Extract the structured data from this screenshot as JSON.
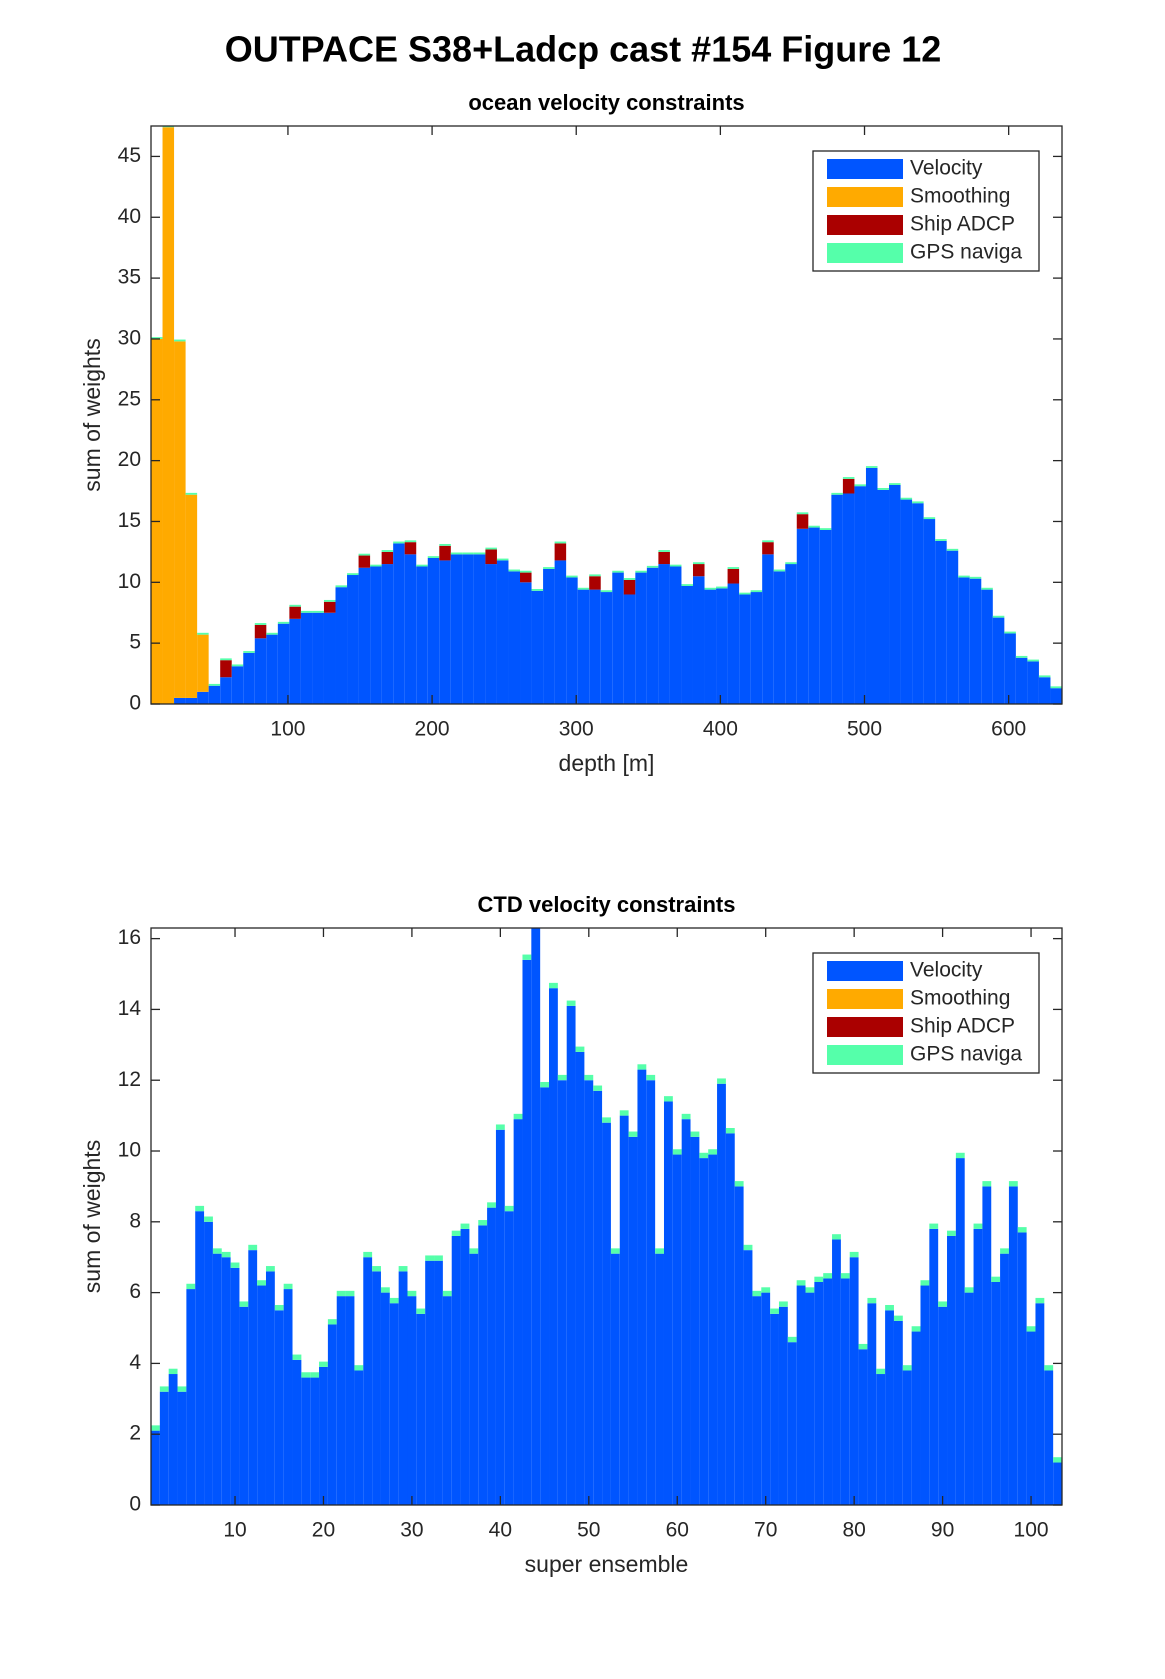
{
  "title": "OUTPACE S38+Ladcp cast #154  Figure 12",
  "chart_data": [
    {
      "type": "bar",
      "title": "ocean velocity constraints",
      "xlabel": "depth [m]",
      "ylabel": "sum of weights",
      "x": [
        9,
        17,
        25,
        33,
        41,
        49,
        57,
        65,
        73,
        81,
        89,
        97,
        105,
        113,
        121,
        129,
        137,
        145,
        153,
        161,
        169,
        177,
        185,
        193,
        201,
        209,
        217,
        225,
        233,
        241,
        249,
        257,
        265,
        273,
        281,
        289,
        297,
        305,
        313,
        321,
        329,
        337,
        345,
        353,
        361,
        369,
        377,
        385,
        393,
        401,
        409,
        417,
        425,
        433,
        441,
        449,
        457,
        465,
        473,
        481,
        489,
        497,
        505,
        513,
        521,
        529,
        537,
        545,
        553,
        561,
        569,
        577,
        585,
        593,
        601,
        609,
        617,
        625,
        633
      ],
      "series": [
        {
          "name": "Velocity",
          "color": "#0055ff",
          "values": [
            0,
            0,
            0.5,
            0.5,
            1.0,
            1.5,
            2.2,
            3.1,
            4.2,
            5.4,
            5.7,
            6.6,
            7.0,
            7.5,
            7.5,
            7.5,
            9.6,
            10.6,
            11.2,
            11.3,
            11.5,
            13.2,
            12.3,
            11.3,
            12.0,
            11.8,
            12.3,
            12.3,
            12.3,
            11.5,
            11.8,
            10.9,
            10.0,
            9.3,
            11.1,
            11.8,
            10.4,
            9.4,
            9.4,
            9.2,
            10.8,
            9.0,
            10.8,
            11.2,
            11.5,
            11.3,
            9.7,
            10.5,
            9.4,
            9.5,
            9.9,
            9.0,
            9.2,
            12.3,
            10.9,
            11.5,
            14.4,
            14.5,
            14.3,
            17.2,
            17.3,
            17.9,
            19.4,
            17.6,
            18.0,
            16.8,
            16.5,
            15.2,
            13.4,
            12.6,
            10.4,
            10.3,
            9.4,
            7.1,
            5.8,
            3.8,
            3.5,
            2.2,
            1.3
          ]
        },
        {
          "name": "Smoothing",
          "color": "#ffaa00",
          "values": [
            30,
            47.4,
            29.3,
            16.7,
            4.7,
            0,
            0,
            0,
            0,
            0,
            0,
            0,
            0,
            0,
            0,
            0,
            0,
            0,
            0,
            0,
            0,
            0,
            0,
            0,
            0,
            0,
            0,
            0,
            0,
            0,
            0,
            0,
            0,
            0,
            0,
            0,
            0,
            0,
            0,
            0,
            0,
            0,
            0,
            0,
            0,
            0,
            0,
            0,
            0,
            0,
            0,
            0,
            0,
            0,
            0,
            0,
            0,
            0,
            0,
            0,
            0,
            0,
            0,
            0,
            0,
            0,
            0,
            0,
            0,
            0,
            0,
            0,
            0,
            0,
            0,
            0,
            0,
            0,
            0
          ]
        },
        {
          "name": "Ship ADCP",
          "color": "#aa0000",
          "values": [
            0,
            0,
            0,
            0,
            0,
            0,
            1.4,
            0,
            0,
            1.1,
            0,
            0,
            1.0,
            0,
            0,
            0.9,
            0,
            0,
            1.0,
            0,
            1.0,
            0,
            1.0,
            0,
            0,
            1.2,
            0,
            0,
            0,
            1.2,
            0,
            0,
            0.8,
            0,
            0,
            1.4,
            0,
            0,
            1.1,
            0,
            0,
            1.2,
            0,
            0,
            1.0,
            0,
            0,
            1.0,
            0,
            0,
            1.2,
            0,
            0,
            1.0,
            0,
            0,
            1.2,
            0,
            0,
            0,
            1.2,
            0,
            0,
            0,
            0,
            0,
            0,
            0,
            0,
            0,
            0,
            0,
            0,
            0,
            0,
            0,
            0,
            0,
            0
          ]
        },
        {
          "name": "GPS naviga",
          "color": "#55ffaa",
          "values": [
            0.15,
            0.15,
            0.15,
            0.15,
            0.15,
            0.15,
            0.15,
            0.15,
            0.15,
            0.15,
            0.15,
            0.15,
            0.15,
            0.15,
            0.15,
            0.15,
            0.15,
            0.15,
            0.15,
            0.15,
            0.15,
            0.15,
            0.15,
            0.15,
            0.15,
            0.15,
            0.15,
            0.15,
            0.15,
            0.15,
            0.15,
            0.15,
            0.15,
            0.15,
            0.15,
            0.15,
            0.15,
            0.15,
            0.15,
            0.15,
            0.15,
            0.15,
            0.15,
            0.15,
            0.15,
            0.15,
            0.15,
            0.15,
            0.15,
            0.15,
            0.15,
            0.15,
            0.15,
            0.15,
            0.15,
            0.15,
            0.15,
            0.15,
            0.15,
            0.15,
            0.15,
            0.15,
            0.15,
            0.15,
            0.15,
            0.15,
            0.15,
            0.15,
            0.15,
            0.15,
            0.15,
            0.15,
            0.15,
            0.15,
            0.15,
            0.15,
            0.15,
            0.15,
            0.15
          ]
        }
      ],
      "xlim": [
        5,
        637
      ],
      "ylim": [
        0,
        47.5
      ],
      "xticks": [
        100,
        200,
        300,
        400,
        500,
        600
      ],
      "yticks": [
        0,
        5,
        10,
        15,
        20,
        25,
        30,
        35,
        40,
        45
      ],
      "legend": "upper right"
    },
    {
      "type": "bar",
      "title": "CTD velocity constraints",
      "xlabel": "super ensemble",
      "ylabel": "sum of weights",
      "x": [
        1,
        2,
        3,
        4,
        5,
        6,
        7,
        8,
        9,
        10,
        11,
        12,
        13,
        14,
        15,
        16,
        17,
        18,
        19,
        20,
        21,
        22,
        23,
        24,
        25,
        26,
        27,
        28,
        29,
        30,
        31,
        32,
        33,
        34,
        35,
        36,
        37,
        38,
        39,
        40,
        41,
        42,
        43,
        44,
        45,
        46,
        47,
        48,
        49,
        50,
        51,
        52,
        53,
        54,
        55,
        56,
        57,
        58,
        59,
        60,
        61,
        62,
        63,
        64,
        65,
        66,
        67,
        68,
        69,
        70,
        71,
        72,
        73,
        74,
        75,
        76,
        77,
        78,
        79,
        80,
        81,
        82,
        83,
        84,
        85,
        86,
        87,
        88,
        89,
        90,
        91,
        92,
        93,
        94,
        95,
        96,
        97,
        98,
        99,
        100,
        101,
        102,
        103
      ],
      "series": [
        {
          "name": "Velocity",
          "color": "#0055ff",
          "values": [
            2.1,
            3.2,
            3.7,
            3.2,
            6.1,
            8.3,
            8.0,
            7.1,
            7.0,
            6.7,
            5.6,
            7.2,
            6.2,
            6.6,
            5.5,
            6.1,
            4.1,
            3.6,
            3.6,
            3.9,
            5.1,
            5.9,
            5.9,
            3.8,
            7.0,
            6.6,
            6.0,
            5.7,
            6.6,
            5.9,
            5.4,
            6.9,
            6.9,
            5.9,
            7.6,
            7.8,
            7.1,
            7.9,
            8.4,
            10.6,
            8.3,
            10.9,
            15.4,
            16.3,
            11.8,
            14.6,
            12.0,
            14.1,
            12.8,
            12.0,
            11.7,
            10.8,
            7.1,
            11.0,
            10.4,
            12.3,
            12.0,
            7.1,
            11.4,
            9.9,
            10.9,
            10.4,
            9.8,
            9.9,
            11.9,
            10.5,
            9.0,
            7.2,
            5.9,
            6.0,
            5.4,
            5.6,
            4.6,
            6.2,
            6.0,
            6.3,
            6.4,
            7.5,
            6.4,
            7.0,
            4.4,
            5.7,
            3.7,
            5.5,
            5.2,
            3.8,
            4.9,
            6.2,
            7.8,
            5.6,
            7.6,
            9.8,
            6.0,
            7.8,
            9.0,
            6.3,
            7.1,
            9.0,
            7.7,
            4.9,
            5.7,
            3.8,
            1.2
          ]
        },
        {
          "name": "Smoothing",
          "color": "#ffaa00",
          "values": [
            0,
            0,
            0,
            0,
            0,
            0,
            0,
            0,
            0,
            0,
            0,
            0,
            0,
            0,
            0,
            0,
            0,
            0,
            0,
            0,
            0,
            0,
            0,
            0,
            0,
            0,
            0,
            0,
            0,
            0,
            0,
            0,
            0,
            0,
            0,
            0,
            0,
            0,
            0,
            0,
            0,
            0,
            0,
            0,
            0,
            0,
            0,
            0,
            0,
            0,
            0,
            0,
            0,
            0,
            0,
            0,
            0,
            0,
            0,
            0,
            0,
            0,
            0,
            0,
            0,
            0,
            0,
            0,
            0,
            0,
            0,
            0,
            0,
            0,
            0,
            0,
            0,
            0,
            0,
            0,
            0,
            0,
            0,
            0,
            0,
            0,
            0,
            0,
            0,
            0,
            0,
            0,
            0,
            0,
            0,
            0,
            0,
            0,
            0,
            0,
            0,
            0,
            0
          ]
        },
        {
          "name": "Ship ADCP",
          "color": "#aa0000",
          "values": [
            0,
            0,
            0,
            0,
            0,
            0,
            0,
            0,
            0,
            0,
            0,
            0,
            0,
            0,
            0,
            0,
            0,
            0,
            0,
            0,
            0,
            0,
            0,
            0,
            0,
            0,
            0,
            0,
            0,
            0,
            0,
            0,
            0,
            0,
            0,
            0,
            0,
            0,
            0,
            0,
            0,
            0,
            0,
            0,
            0,
            0,
            0,
            0,
            0,
            0,
            0,
            0,
            0,
            0,
            0,
            0,
            0,
            0,
            0,
            0,
            0,
            0,
            0,
            0,
            0,
            0,
            0,
            0,
            0,
            0,
            0,
            0,
            0,
            0,
            0,
            0,
            0,
            0,
            0,
            0,
            0,
            0,
            0,
            0,
            0,
            0,
            0,
            0,
            0,
            0,
            0,
            0,
            0,
            0,
            0,
            0,
            0,
            0,
            0,
            0,
            0,
            0,
            0
          ]
        },
        {
          "name": "GPS naviga",
          "color": "#55ffaa",
          "values": [
            0.15,
            0.15,
            0.15,
            0.15,
            0.15,
            0.15,
            0.15,
            0.15,
            0.15,
            0.15,
            0.15,
            0.15,
            0.15,
            0.15,
            0.15,
            0.15,
            0.15,
            0.15,
            0.15,
            0.15,
            0.15,
            0.15,
            0.15,
            0.15,
            0.15,
            0.15,
            0.15,
            0.15,
            0.15,
            0.15,
            0.15,
            0.15,
            0.15,
            0.15,
            0.15,
            0.15,
            0.15,
            0.15,
            0.15,
            0.15,
            0.15,
            0.15,
            0.15,
            0.15,
            0.15,
            0.15,
            0.15,
            0.15,
            0.15,
            0.15,
            0.15,
            0.15,
            0.15,
            0.15,
            0.15,
            0.15,
            0.15,
            0.15,
            0.15,
            0.15,
            0.15,
            0.15,
            0.15,
            0.15,
            0.15,
            0.15,
            0.15,
            0.15,
            0.15,
            0.15,
            0.15,
            0.15,
            0.15,
            0.15,
            0.15,
            0.15,
            0.15,
            0.15,
            0.15,
            0.15,
            0.15,
            0.15,
            0.15,
            0.15,
            0.15,
            0.15,
            0.15,
            0.15,
            0.15,
            0.15,
            0.15,
            0.15,
            0.15,
            0.15,
            0.15,
            0.15,
            0.15,
            0.15,
            0.15,
            0.15,
            0.15,
            0.15,
            0.15
          ]
        }
      ],
      "xlim": [
        0.5,
        103.5
      ],
      "ylim": [
        0,
        16.3
      ],
      "xticks": [
        10,
        20,
        30,
        40,
        50,
        60,
        70,
        80,
        90,
        100
      ],
      "yticks": [
        0,
        2,
        4,
        6,
        8,
        10,
        12,
        14,
        16
      ],
      "legend": "upper right"
    }
  ]
}
